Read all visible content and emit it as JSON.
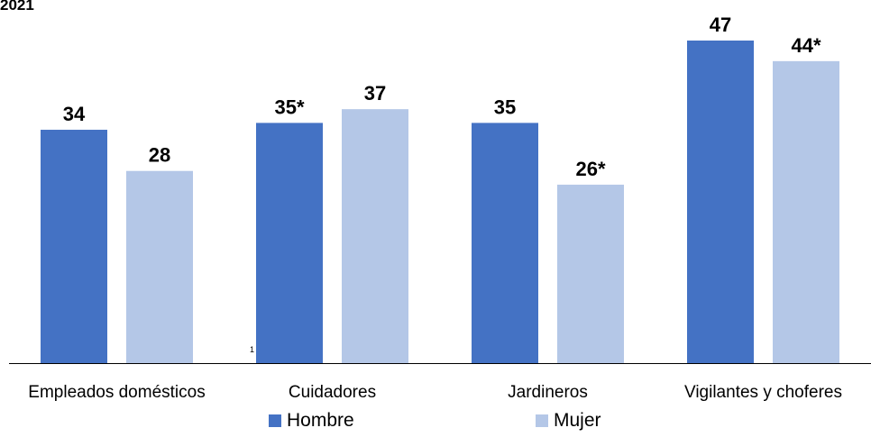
{
  "header": {
    "year_text": "2021"
  },
  "stray_mark": "1",
  "colors": {
    "hombre": "#4472C4",
    "mujer": "#B4C7E7",
    "axis": "#000000"
  },
  "chart_data": {
    "type": "bar",
    "categories": [
      "Empleados domésticos",
      "Cuidadores",
      "Jardineros",
      "Vigilantes y choferes"
    ],
    "series": [
      {
        "name": "Hombre",
        "values": [
          34,
          35,
          35,
          47
        ],
        "labels": [
          "34",
          "35*",
          "35",
          "47"
        ]
      },
      {
        "name": "Mujer",
        "values": [
          28,
          37,
          26,
          44
        ],
        "labels": [
          "28",
          "37",
          "26*",
          "44*"
        ]
      }
    ],
    "ylim": [
      0,
      47
    ],
    "grid": false,
    "legend_position": "bottom"
  }
}
